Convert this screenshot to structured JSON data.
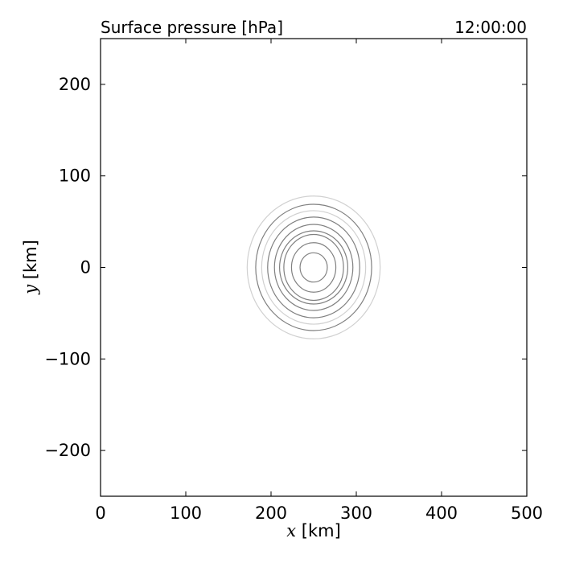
{
  "chart_data": {
    "type": "contour",
    "title": "Surface pressure [hPa]",
    "time_label": "12:00:00",
    "xlabel": {
      "var": "x",
      "unit": " [km]"
    },
    "ylabel": {
      "var": "y",
      "unit": " [km]"
    },
    "xlim": [
      0,
      500
    ],
    "ylim": [
      -250,
      250
    ],
    "x_ticks": [
      0,
      100,
      200,
      300,
      400,
      500
    ],
    "y_ticks": [
      -200,
      -100,
      0,
      100,
      200
    ],
    "x_tick_labels": [
      "0",
      "100",
      "200",
      "300",
      "400",
      "500"
    ],
    "y_tick_labels": [
      "−200",
      "−100",
      "0",
      "100",
      "200"
    ],
    "grid": false,
    "contours": [
      {
        "center": [
          250,
          0
        ],
        "rx": 78,
        "ry": 78,
        "color": "#d0d0d0"
      },
      {
        "center": [
          250,
          0
        ],
        "rx": 68,
        "ry": 69,
        "color": "#808080"
      },
      {
        "center": [
          250,
          0
        ],
        "rx": 61,
        "ry": 62,
        "color": "#d0d0d0"
      },
      {
        "center": [
          250,
          0
        ],
        "rx": 54,
        "ry": 55,
        "color": "#808080"
      },
      {
        "center": [
          250,
          0
        ],
        "rx": 46,
        "ry": 47,
        "color": "#808080"
      },
      {
        "center": [
          250,
          0
        ],
        "rx": 40,
        "ry": 40,
        "color": "#808080"
      },
      {
        "center": [
          250,
          0
        ],
        "rx": 35,
        "ry": 36,
        "color": "#808080"
      },
      {
        "center": [
          250,
          0
        ],
        "rx": 26,
        "ry": 27,
        "color": "#808080"
      },
      {
        "center": [
          250,
          0
        ],
        "rx": 16,
        "ry": 16,
        "color": "#808080"
      }
    ]
  }
}
